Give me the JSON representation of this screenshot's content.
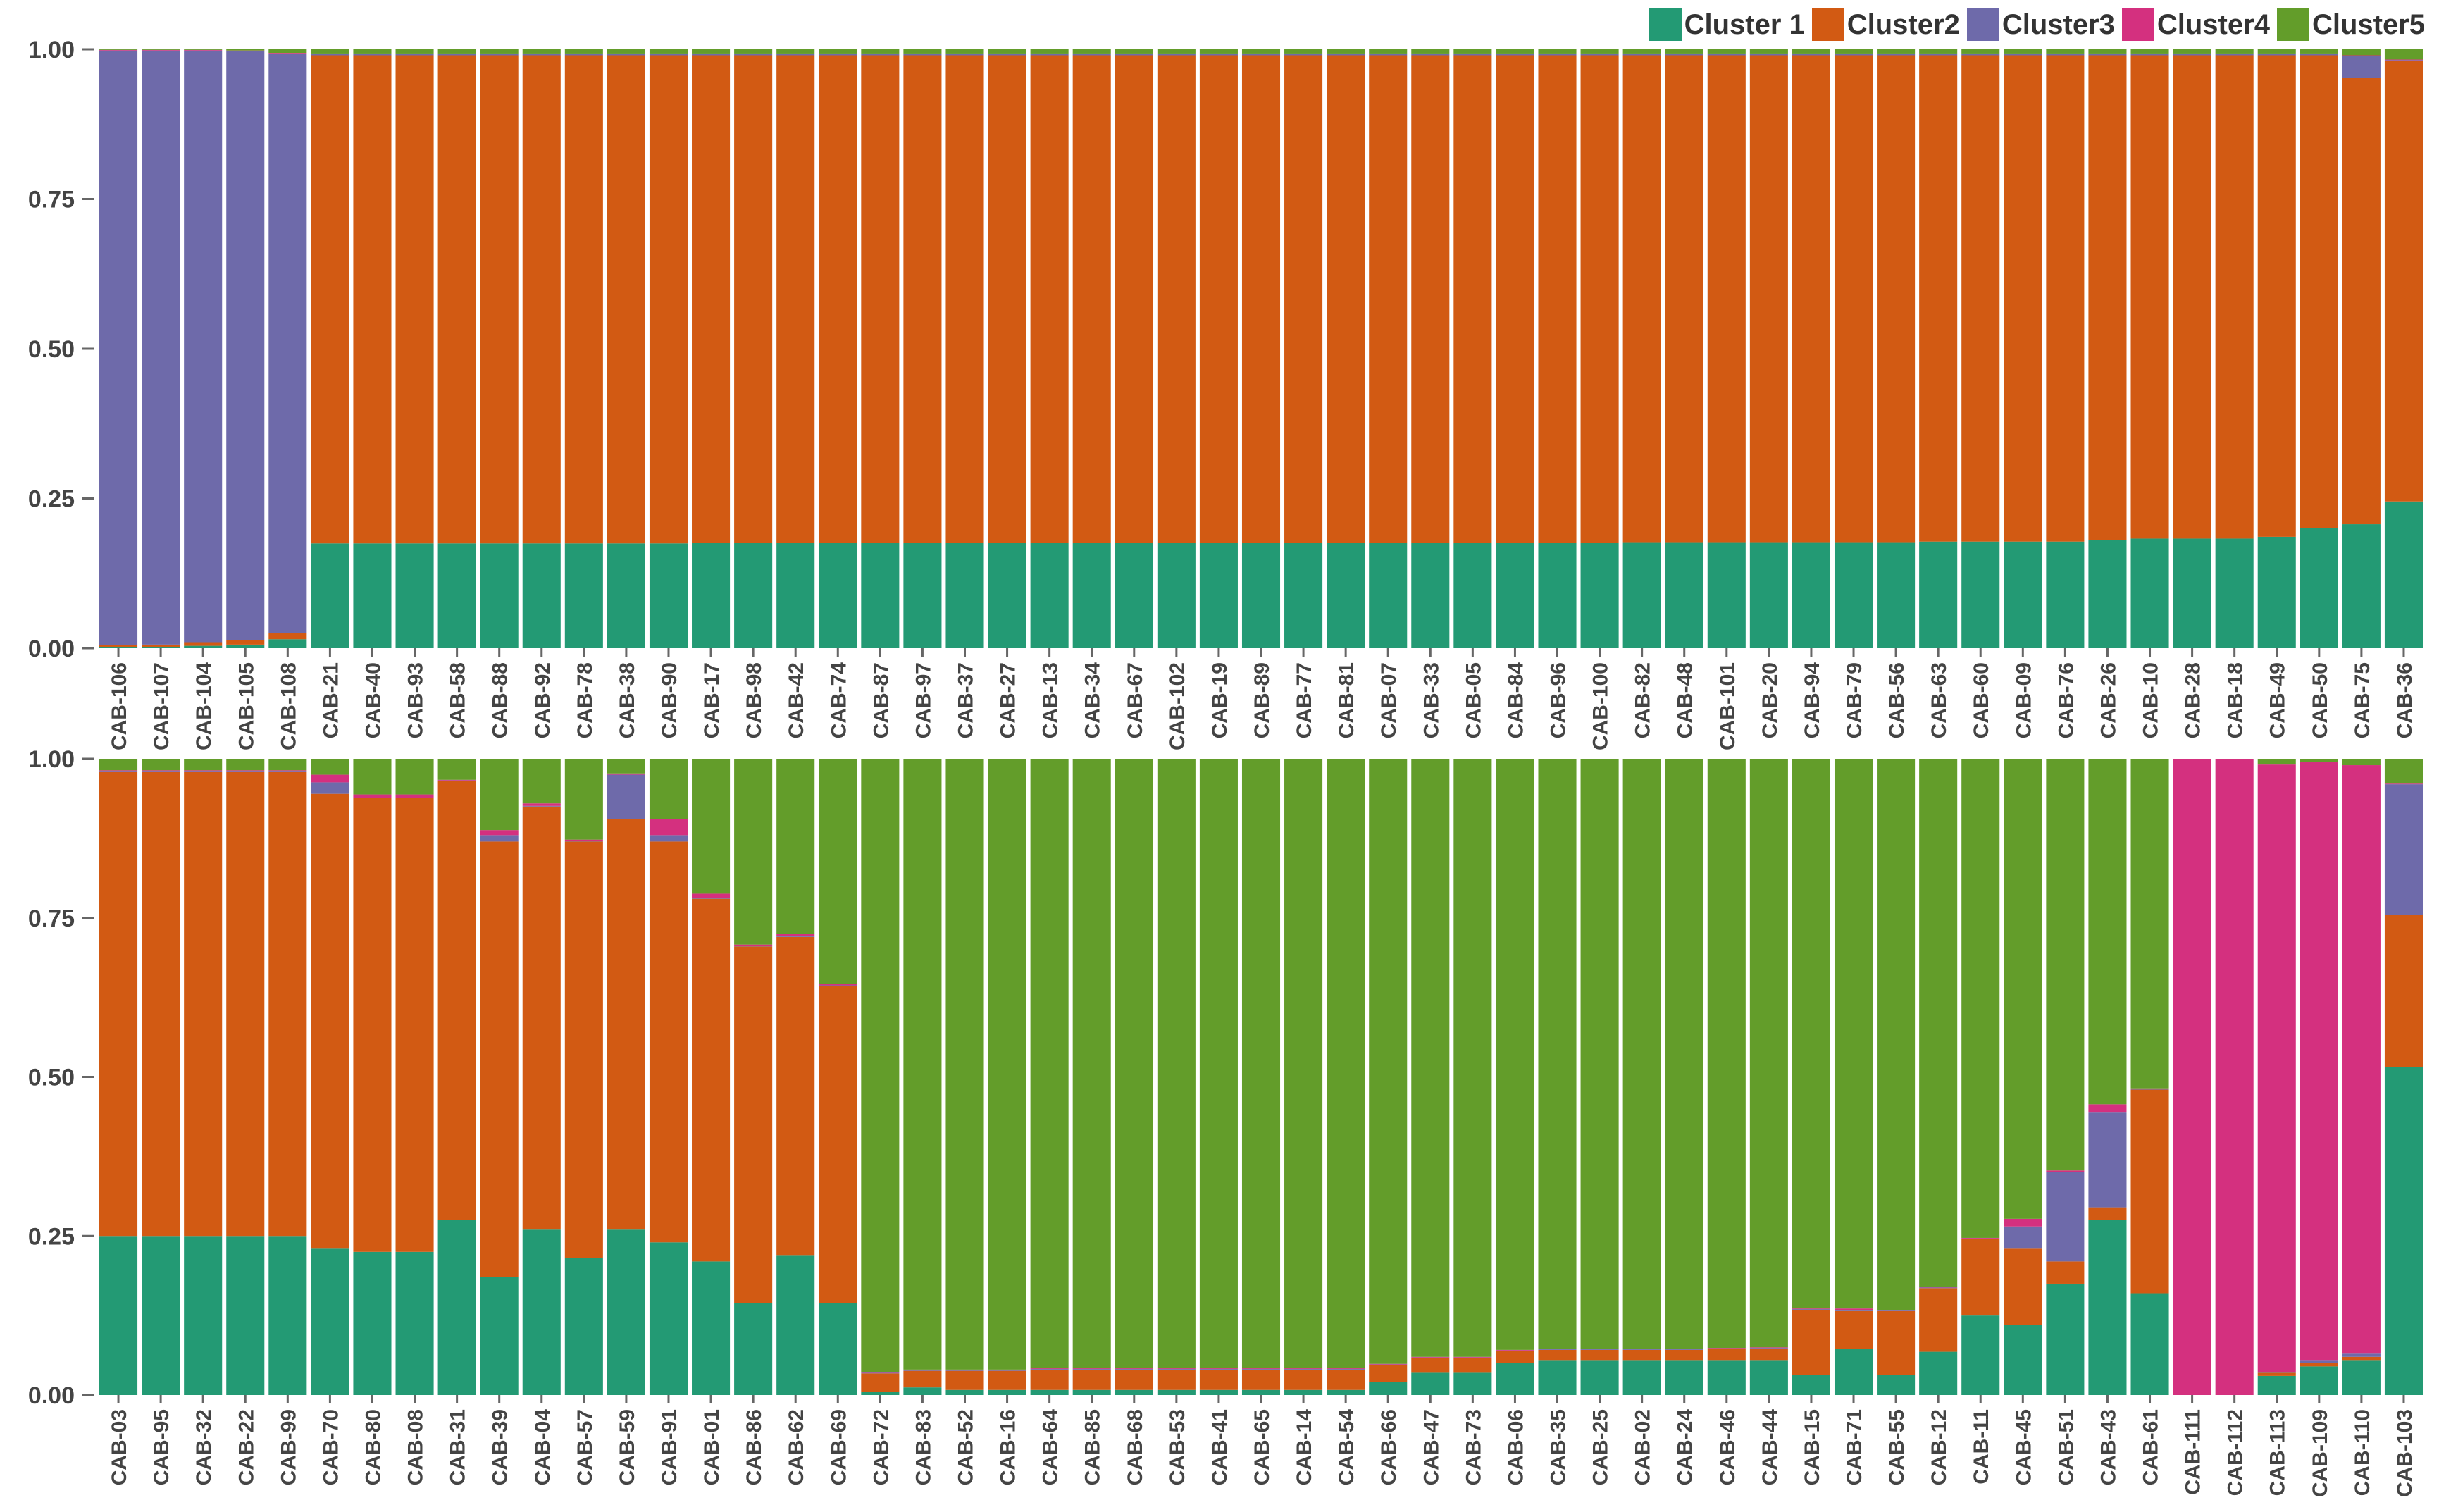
{
  "chart_data": [
    {
      "panel": "top",
      "type": "bar",
      "stacked": true,
      "ylim": [
        0,
        1
      ],
      "yticks": [
        "0.00",
        "0.25",
        "0.50",
        "0.75",
        "1.00"
      ],
      "categories": [
        "CAB-106",
        "CAB-107",
        "CAB-104",
        "CAB-105",
        "CAB-108",
        "CAB-21",
        "CAB-40",
        "CAB-93",
        "CAB-58",
        "CAB-88",
        "CAB-92",
        "CAB-78",
        "CAB-38",
        "CAB-90",
        "CAB-17",
        "CAB-98",
        "CAB-42",
        "CAB-74",
        "CAB-87",
        "CAB-97",
        "CAB-37",
        "CAB-27",
        "CAB-13",
        "CAB-34",
        "CAB-67",
        "CAB-102",
        "CAB-19",
        "CAB-89",
        "CAB-77",
        "CAB-81",
        "CAB-07",
        "CAB-33",
        "CAB-05",
        "CAB-84",
        "CAB-96",
        "CAB-100",
        "CAB-82",
        "CAB-48",
        "CAB-101",
        "CAB-20",
        "CAB-94",
        "CAB-79",
        "CAB-56",
        "CAB-63",
        "CAB-60",
        "CAB-09",
        "CAB-76",
        "CAB-26",
        "CAB-10",
        "CAB-28",
        "CAB-18",
        "CAB-49",
        "CAB-50",
        "CAB-75",
        "CAB-36"
      ],
      "series": [
        {
          "name": "Cluster 1",
          "values": [
            0.002,
            0.002,
            0.004,
            0.006,
            0.015,
            0.175,
            0.175,
            0.175,
            0.175,
            0.175,
            0.175,
            0.175,
            0.175,
            0.175,
            0.176,
            0.176,
            0.176,
            0.176,
            0.176,
            0.176,
            0.176,
            0.176,
            0.176,
            0.176,
            0.176,
            0.176,
            0.176,
            0.176,
            0.176,
            0.176,
            0.176,
            0.176,
            0.176,
            0.176,
            0.176,
            0.176,
            0.177,
            0.177,
            0.177,
            0.177,
            0.177,
            0.177,
            0.177,
            0.178,
            0.178,
            0.178,
            0.178,
            0.18,
            0.183,
            0.183,
            0.183,
            0.186,
            0.2,
            0.207,
            0.245
          ]
        },
        {
          "name": "Cluster2",
          "values": [
            0.003,
            0.004,
            0.006,
            0.008,
            0.01,
            0.815,
            0.815,
            0.815,
            0.815,
            0.815,
            0.815,
            0.815,
            0.815,
            0.815,
            0.814,
            0.814,
            0.814,
            0.814,
            0.814,
            0.814,
            0.814,
            0.814,
            0.814,
            0.814,
            0.814,
            0.814,
            0.814,
            0.814,
            0.814,
            0.814,
            0.814,
            0.814,
            0.814,
            0.814,
            0.814,
            0.814,
            0.813,
            0.813,
            0.813,
            0.813,
            0.813,
            0.813,
            0.813,
            0.812,
            0.812,
            0.812,
            0.812,
            0.81,
            0.807,
            0.807,
            0.807,
            0.804,
            0.79,
            0.745,
            0.735
          ]
        },
        {
          "name": "Cluster3",
          "values": [
            0.993,
            0.992,
            0.988,
            0.983,
            0.968,
            0.002,
            0.002,
            0.002,
            0.002,
            0.002,
            0.002,
            0.002,
            0.002,
            0.002,
            0.002,
            0.002,
            0.002,
            0.002,
            0.002,
            0.002,
            0.002,
            0.002,
            0.002,
            0.002,
            0.002,
            0.002,
            0.002,
            0.002,
            0.002,
            0.002,
            0.002,
            0.002,
            0.002,
            0.002,
            0.002,
            0.002,
            0.002,
            0.002,
            0.002,
            0.002,
            0.002,
            0.002,
            0.002,
            0.002,
            0.002,
            0.002,
            0.002,
            0.002,
            0.002,
            0.002,
            0.002,
            0.002,
            0.002,
            0.037,
            0.002
          ]
        },
        {
          "name": "Cluster4",
          "values": [
            0.001,
            0.001,
            0.001,
            0.001,
            0.001,
            0.001,
            0.001,
            0.001,
            0.001,
            0.001,
            0.001,
            0.001,
            0.001,
            0.001,
            0.001,
            0.001,
            0.001,
            0.001,
            0.001,
            0.001,
            0.001,
            0.001,
            0.001,
            0.001,
            0.001,
            0.001,
            0.001,
            0.001,
            0.001,
            0.001,
            0.001,
            0.001,
            0.001,
            0.001,
            0.001,
            0.001,
            0.001,
            0.001,
            0.001,
            0.001,
            0.001,
            0.001,
            0.001,
            0.001,
            0.001,
            0.001,
            0.001,
            0.001,
            0.001,
            0.001,
            0.001,
            0.001,
            0.001,
            0.001,
            0.001
          ]
        },
        {
          "name": "Cluster5",
          "values": [
            0.001,
            0.001,
            0.001,
            0.002,
            0.006,
            0.007,
            0.007,
            0.007,
            0.007,
            0.007,
            0.007,
            0.007,
            0.007,
            0.007,
            0.007,
            0.007,
            0.007,
            0.007,
            0.007,
            0.007,
            0.007,
            0.007,
            0.007,
            0.007,
            0.007,
            0.007,
            0.007,
            0.007,
            0.007,
            0.007,
            0.007,
            0.007,
            0.007,
            0.007,
            0.007,
            0.007,
            0.007,
            0.007,
            0.007,
            0.007,
            0.007,
            0.007,
            0.007,
            0.007,
            0.007,
            0.007,
            0.007,
            0.007,
            0.007,
            0.007,
            0.007,
            0.007,
            0.007,
            0.01,
            0.017
          ]
        }
      ]
    },
    {
      "panel": "bottom",
      "type": "bar",
      "stacked": true,
      "ylim": [
        0,
        1
      ],
      "yticks": [
        "0.00",
        "0.25",
        "0.50",
        "0.75",
        "1.00"
      ],
      "categories": [
        "CAB-03",
        "CAB-95",
        "CAB-32",
        "CAB-22",
        "CAB-99",
        "CAB-70",
        "CAB-80",
        "CAB-08",
        "CAB-31",
        "CAB-39",
        "CAB-04",
        "CAB-57",
        "CAB-59",
        "CAB-91",
        "CAB-01",
        "CAB-86",
        "CAB-62",
        "CAB-69",
        "CAB-72",
        "CAB-83",
        "CAB-52",
        "CAB-16",
        "CAB-64",
        "CAB-85",
        "CAB-68",
        "CAB-53",
        "CAB-41",
        "CAB-65",
        "CAB-14",
        "CAB-54",
        "CAB-66",
        "CAB-47",
        "CAB-73",
        "CAB-06",
        "CAB-35",
        "CAB-25",
        "CAB-02",
        "CAB-24",
        "CAB-46",
        "CAB-44",
        "CAB-15",
        "CAB-71",
        "CAB-55",
        "CAB-12",
        "CAB-11",
        "CAB-45",
        "CAB-51",
        "CAB-43",
        "CAB-61",
        "CAB-111",
        "CAB-112",
        "CAB-113",
        "CAB-109",
        "CAB-110",
        "CAB-103"
      ],
      "series": [
        {
          "name": "Cluster 1",
          "values": [
            0.25,
            0.25,
            0.25,
            0.25,
            0.25,
            0.23,
            0.225,
            0.225,
            0.275,
            0.185,
            0.26,
            0.215,
            0.26,
            0.24,
            0.21,
            0.145,
            0.22,
            0.145,
            0.005,
            0.012,
            0.008,
            0.008,
            0.008,
            0.008,
            0.008,
            0.008,
            0.008,
            0.008,
            0.008,
            0.008,
            0.02,
            0.035,
            0.035,
            0.05,
            0.055,
            0.055,
            0.055,
            0.055,
            0.055,
            0.055,
            0.032,
            0.072,
            0.032,
            0.068,
            0.125,
            0.11,
            0.175,
            0.275,
            0.16,
            0.0,
            0.0,
            0.03,
            0.045,
            0.055,
            0.515
          ]
        },
        {
          "name": "Cluster2",
          "values": [
            0.73,
            0.73,
            0.73,
            0.73,
            0.73,
            0.715,
            0.713,
            0.713,
            0.69,
            0.685,
            0.665,
            0.655,
            0.645,
            0.63,
            0.57,
            0.56,
            0.5,
            0.498,
            0.029,
            0.026,
            0.03,
            0.03,
            0.032,
            0.032,
            0.032,
            0.032,
            0.032,
            0.032,
            0.032,
            0.032,
            0.027,
            0.023,
            0.023,
            0.019,
            0.016,
            0.016,
            0.016,
            0.016,
            0.017,
            0.018,
            0.102,
            0.06,
            0.1,
            0.1,
            0.12,
            0.12,
            0.035,
            0.02,
            0.32,
            0.0,
            0.0,
            0.005,
            0.005,
            0.005,
            0.24
          ]
        },
        {
          "name": "Cluster3",
          "values": [
            0.001,
            0.001,
            0.001,
            0.001,
            0.001,
            0.018,
            0.001,
            0.001,
            0.001,
            0.01,
            0.001,
            0.001,
            0.07,
            0.01,
            0.001,
            0.001,
            0.001,
            0.001,
            0.001,
            0.001,
            0.001,
            0.001,
            0.001,
            0.001,
            0.001,
            0.001,
            0.001,
            0.001,
            0.001,
            0.001,
            0.001,
            0.001,
            0.001,
            0.001,
            0.001,
            0.001,
            0.001,
            0.001,
            0.001,
            0.001,
            0.001,
            0.001,
            0.001,
            0.001,
            0.001,
            0.035,
            0.14,
            0.15,
            0.001,
            0.0,
            0.0,
            0.001,
            0.005,
            0.005,
            0.205
          ]
        },
        {
          "name": "Cluster4",
          "values": [
            0.001,
            0.001,
            0.001,
            0.001,
            0.001,
            0.012,
            0.005,
            0.005,
            0.001,
            0.008,
            0.004,
            0.002,
            0.002,
            0.025,
            0.007,
            0.002,
            0.004,
            0.002,
            0.001,
            0.001,
            0.001,
            0.001,
            0.001,
            0.001,
            0.001,
            0.001,
            0.001,
            0.001,
            0.001,
            0.001,
            0.001,
            0.001,
            0.001,
            0.001,
            0.001,
            0.001,
            0.001,
            0.001,
            0.001,
            0.001,
            0.001,
            0.003,
            0.001,
            0.001,
            0.001,
            0.012,
            0.003,
            0.012,
            0.001,
            1.0,
            1.0,
            0.955,
            0.94,
            0.925,
            0.001
          ]
        },
        {
          "name": "Cluster5",
          "values": [
            0.018,
            0.018,
            0.018,
            0.018,
            0.018,
            0.025,
            0.056,
            0.056,
            0.033,
            0.112,
            0.07,
            0.127,
            0.023,
            0.095,
            0.212,
            0.292,
            0.275,
            0.354,
            0.964,
            0.96,
            0.96,
            0.96,
            0.958,
            0.958,
            0.958,
            0.958,
            0.958,
            0.958,
            0.958,
            0.958,
            0.951,
            0.94,
            0.94,
            0.929,
            0.927,
            0.927,
            0.927,
            0.927,
            0.926,
            0.925,
            0.864,
            0.864,
            0.866,
            0.83,
            0.753,
            0.723,
            0.647,
            0.543,
            0.518,
            0.0,
            0.0,
            0.009,
            0.005,
            0.01,
            0.039
          ]
        }
      ]
    }
  ],
  "legend": [
    {
      "label": "Cluster 1",
      "color": "#239a74"
    },
    {
      "label": "Cluster2",
      "color": "#d25a13"
    },
    {
      "label": "Cluster3",
      "color": "#6e6aaa"
    },
    {
      "label": "Cluster4",
      "color": "#d4307f"
    },
    {
      "label": "Cluster5",
      "color": "#639d2a"
    }
  ]
}
